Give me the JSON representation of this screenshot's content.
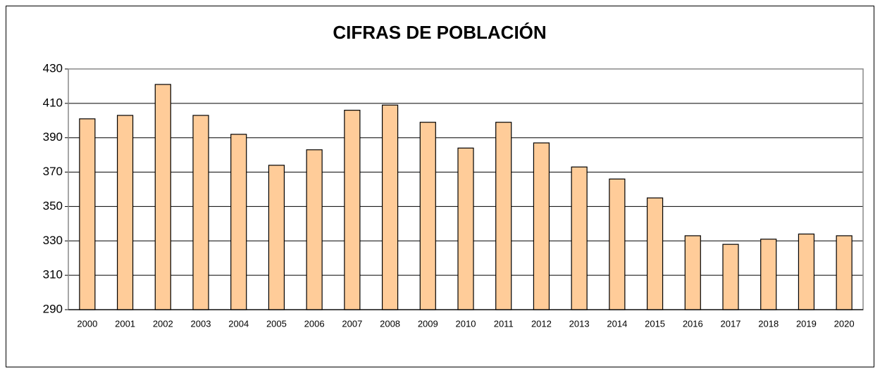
{
  "chart_data": {
    "type": "bar",
    "title": "CIFRAS DE POBLACIÓN",
    "categories": [
      "2000",
      "2001",
      "2002",
      "2003",
      "2004",
      "2005",
      "2006",
      "2007",
      "2008",
      "2009",
      "2010",
      "2011",
      "2012",
      "2013",
      "2014",
      "2015",
      "2016",
      "2017",
      "2018",
      "2019",
      "2020"
    ],
    "values": [
      401,
      403,
      421,
      403,
      392,
      374,
      383,
      406,
      409,
      399,
      384,
      399,
      387,
      373,
      366,
      355,
      333,
      328,
      331,
      334,
      333
    ],
    "color": "#ffcc99",
    "ylim": [
      290,
      430
    ],
    "yticks": [
      290,
      310,
      330,
      350,
      370,
      390,
      410,
      430
    ],
    "grid": true
  }
}
